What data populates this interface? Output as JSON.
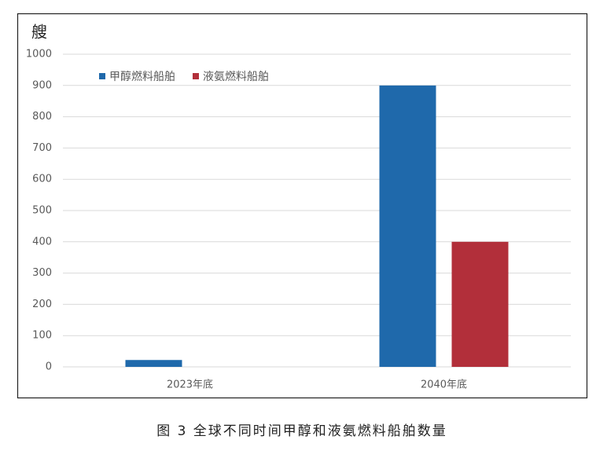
{
  "chart_data": {
    "type": "bar",
    "ylabel": "艘",
    "categories": [
      "2023年底",
      "2040年底"
    ],
    "series": [
      {
        "name": "甲醇燃料船舶",
        "color": "#1f69ab",
        "values": [
          22,
          900
        ]
      },
      {
        "name": "液氨燃料船舶",
        "color": "#b22f3a",
        "values": [
          0,
          400
        ]
      }
    ],
    "ylim": [
      0,
      1000
    ],
    "yticks": [
      0,
      100,
      200,
      300,
      400,
      500,
      600,
      700,
      800,
      900,
      1000
    ],
    "grid": true,
    "legend": "top-left",
    "caption": "图 3 全球不同时间甲醇和液氨燃料船舶数量"
  }
}
